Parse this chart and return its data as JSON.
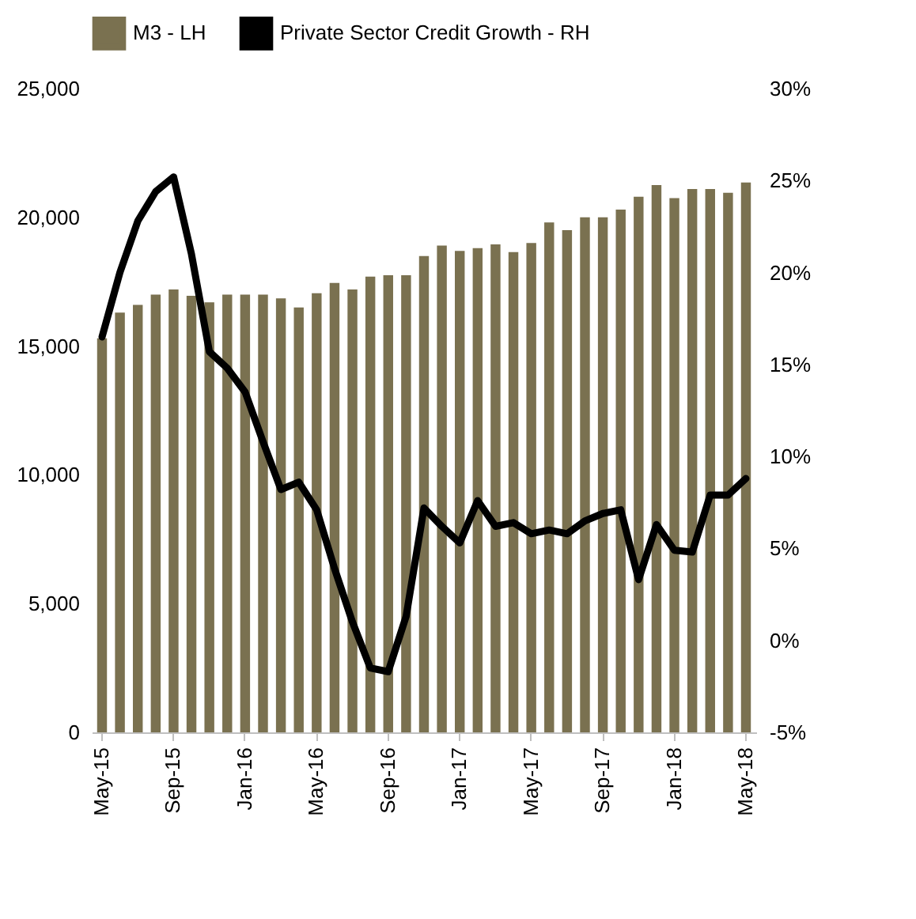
{
  "chart_data": {
    "type": "bar",
    "categories": [
      "May-15",
      null,
      null,
      null,
      "Sep-15",
      null,
      null,
      null,
      "Jan-16",
      null,
      null,
      null,
      "May-16",
      null,
      null,
      null,
      "Sep-16",
      null,
      null,
      null,
      "Jan-17",
      null,
      null,
      null,
      "May-17",
      null,
      null,
      null,
      "Sep-17",
      null,
      null,
      null,
      "Jan-18",
      null,
      null,
      null,
      "May-18"
    ],
    "series": [
      {
        "name": "M3 - LH",
        "color": "#7a7150",
        "values": [
          15300,
          16300,
          16600,
          17000,
          17200,
          16950,
          16700,
          17000,
          17000,
          17000,
          16850,
          16500,
          17050,
          17450,
          17200,
          17700,
          17750,
          17750,
          18500,
          18900,
          18700,
          18800,
          18950,
          18650,
          19000,
          19800,
          19500,
          20000,
          20000,
          20300,
          20800,
          21250,
          20750,
          21100,
          21100,
          20950,
          21350
        ]
      },
      {
        "name": "Private Sector Credit Growth - RH",
        "type": "line",
        "axis": "y2",
        "color": "#000000",
        "values": [
          16.5,
          20.0,
          22.8,
          24.4,
          25.2,
          21.0,
          15.7,
          14.8,
          13.5,
          10.8,
          8.2,
          8.6,
          7.1,
          3.9,
          1.0,
          -1.5,
          -1.7,
          1.3,
          7.2,
          6.2,
          5.3,
          7.6,
          6.2,
          6.4,
          5.8,
          6.0,
          5.8,
          6.5,
          6.9,
          7.1,
          3.3,
          6.3,
          4.9,
          4.8,
          7.9,
          7.9,
          8.8
        ]
      }
    ],
    "ylim": [
      0,
      25000
    ],
    "yticks": [
      {
        "value": 0,
        "label": "0"
      },
      {
        "value": 5000,
        "label": "5,000"
      },
      {
        "value": 10000,
        "label": "10,000"
      },
      {
        "value": 15000,
        "label": "15,000"
      },
      {
        "value": 20000,
        "label": "20,000"
      },
      {
        "value": 25000,
        "label": "25,000"
      }
    ],
    "y2lim": [
      -5,
      30
    ],
    "y2ticks": [
      {
        "value": -5,
        "label": "-5%"
      },
      {
        "value": 0,
        "label": "0%"
      },
      {
        "value": 5,
        "label": "5%"
      },
      {
        "value": 10,
        "label": "10%"
      },
      {
        "value": 15,
        "label": "15%"
      },
      {
        "value": 20,
        "label": "20%"
      },
      {
        "value": 25,
        "label": "25%"
      },
      {
        "value": 30,
        "label": "30%"
      }
    ],
    "legend": "top",
    "grid": false,
    "line_style": "solid",
    "marker": "none"
  }
}
